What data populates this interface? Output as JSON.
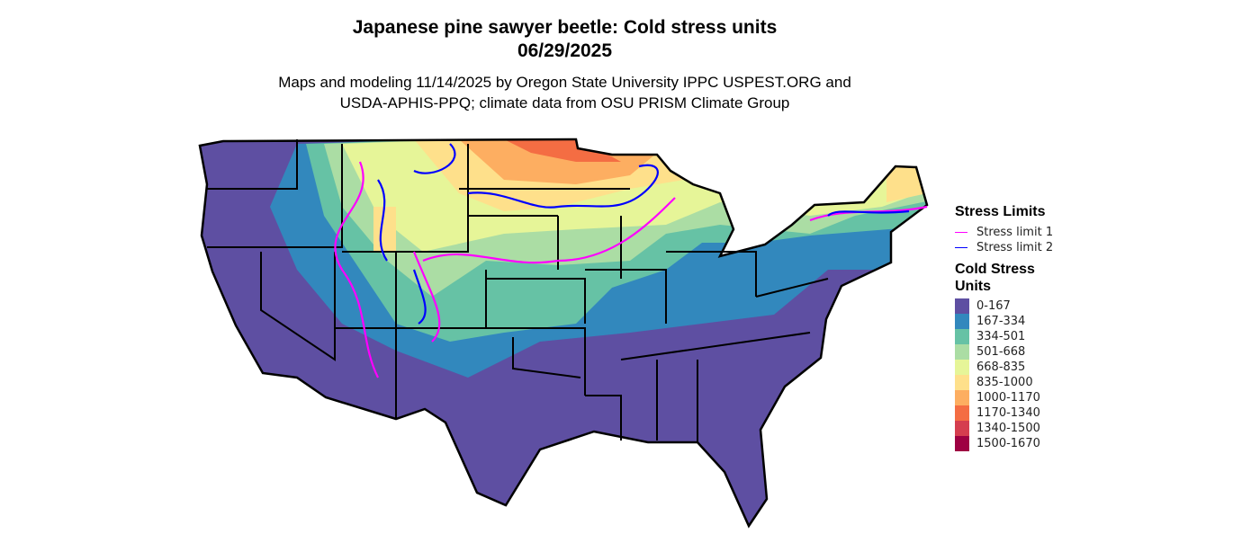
{
  "title": "Japanese pine sawyer beetle: Cold stress units",
  "date": "06/29/2025",
  "subtitle_line1": "Maps and modeling 11/14/2025 by Oregon State University IPPC USPEST.ORG and",
  "subtitle_line2": "USDA-APHIS-PPQ; climate data from OSU PRISM Climate Group",
  "legend": {
    "stress_title": "Stress Limits",
    "stress_items": [
      {
        "label": "Stress limit 1",
        "color": "#FF00FF"
      },
      {
        "label": "Stress limit 2",
        "color": "#0000FF"
      }
    ],
    "units_title_1": "Cold Stress",
    "units_title_2": "Units",
    "bins": [
      {
        "label": "0-167",
        "color": "#5E4FA2"
      },
      {
        "label": "167-334",
        "color": "#3288BD"
      },
      {
        "label": "334-501",
        "color": "#66C2A5"
      },
      {
        "label": "501-668",
        "color": "#ABDDA4"
      },
      {
        "label": "668-835",
        "color": "#E6F598"
      },
      {
        "label": "835-1000",
        "color": "#FEE08B"
      },
      {
        "label": "1000-1170",
        "color": "#FDAE61"
      },
      {
        "label": "1170-1340",
        "color": "#F46D43"
      },
      {
        "label": "1340-1500",
        "color": "#D53E4F"
      },
      {
        "label": "1500-1670",
        "color": "#9E0142"
      }
    ]
  }
}
